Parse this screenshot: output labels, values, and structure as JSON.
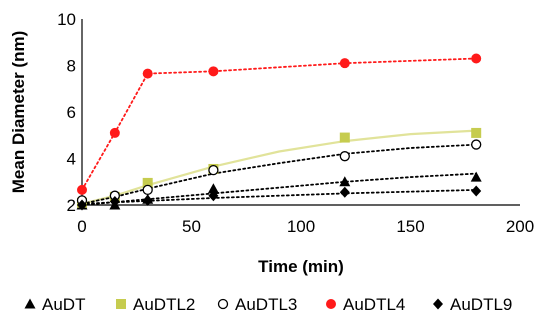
{
  "chart_data": {
    "type": "scatter",
    "title": "",
    "xlabel": "Time (min)",
    "ylabel": "Mean Diameter (nm)",
    "xlim": [
      0,
      200
    ],
    "ylim": [
      2,
      10
    ],
    "x_ticks": [
      "0",
      "50",
      "100",
      "150",
      "200"
    ],
    "y_ticks": [
      "2",
      "4",
      "6",
      "8",
      "10"
    ],
    "grid": false,
    "legend_position": "bottom",
    "series": [
      {
        "name": "AuDT",
        "marker": "triangle",
        "color": "#000000",
        "trend_color": "#000000",
        "x": [
          0,
          15,
          30,
          60,
          120,
          180
        ],
        "y": [
          2.0,
          2.0,
          2.25,
          2.7,
          3.0,
          3.2
        ],
        "trend": [
          [
            0,
            2.0
          ],
          [
            30,
            2.25
          ],
          [
            60,
            2.5
          ],
          [
            90,
            2.75
          ],
          [
            120,
            3.0
          ],
          [
            150,
            3.2
          ],
          [
            180,
            3.35
          ]
        ]
      },
      {
        "name": "AuDTL2",
        "marker": "square",
        "color": "#c6cc4f",
        "trend_color": "#e1e39a",
        "x": [
          0,
          15,
          30,
          60,
          120,
          180
        ],
        "y": [
          2.1,
          2.35,
          2.95,
          3.55,
          4.9,
          5.1
        ],
        "trend": [
          [
            0,
            2.05
          ],
          [
            15,
            2.4
          ],
          [
            30,
            2.85
          ],
          [
            60,
            3.65
          ],
          [
            90,
            4.3
          ],
          [
            120,
            4.75
          ],
          [
            150,
            5.05
          ],
          [
            180,
            5.2
          ]
        ]
      },
      {
        "name": "AuDTL3",
        "marker": "open-circle",
        "color": "#000000",
        "trend_color": "#000000",
        "x": [
          0,
          15,
          30,
          60,
          120,
          180
        ],
        "y": [
          2.2,
          2.4,
          2.65,
          3.5,
          4.1,
          4.6
        ],
        "trend": [
          [
            0,
            2.05
          ],
          [
            15,
            2.35
          ],
          [
            30,
            2.7
          ],
          [
            60,
            3.35
          ],
          [
            90,
            3.8
          ],
          [
            120,
            4.2
          ],
          [
            150,
            4.45
          ],
          [
            180,
            4.6
          ]
        ]
      },
      {
        "name": "AuDTL4",
        "marker": "circle",
        "color": "#ff1a1a",
        "trend_color": "#ff1a1a",
        "x": [
          0,
          15,
          30,
          60,
          120,
          180
        ],
        "y": [
          2.65,
          5.1,
          7.65,
          7.75,
          8.1,
          8.3
        ],
        "trend": [
          [
            0,
            2.65
          ],
          [
            15,
            5.1
          ],
          [
            30,
            7.65
          ],
          [
            60,
            7.75
          ],
          [
            120,
            8.1
          ],
          [
            180,
            8.3
          ]
        ]
      },
      {
        "name": "AuDTL9",
        "marker": "diamond",
        "color": "#000000",
        "trend_color": "#000000",
        "x": [
          0,
          15,
          30,
          60,
          120,
          180
        ],
        "y": [
          2.0,
          2.15,
          2.2,
          2.4,
          2.55,
          2.6
        ],
        "trend": [
          [
            0,
            2.05
          ],
          [
            60,
            2.3
          ],
          [
            120,
            2.5
          ],
          [
            180,
            2.65
          ]
        ]
      }
    ]
  }
}
